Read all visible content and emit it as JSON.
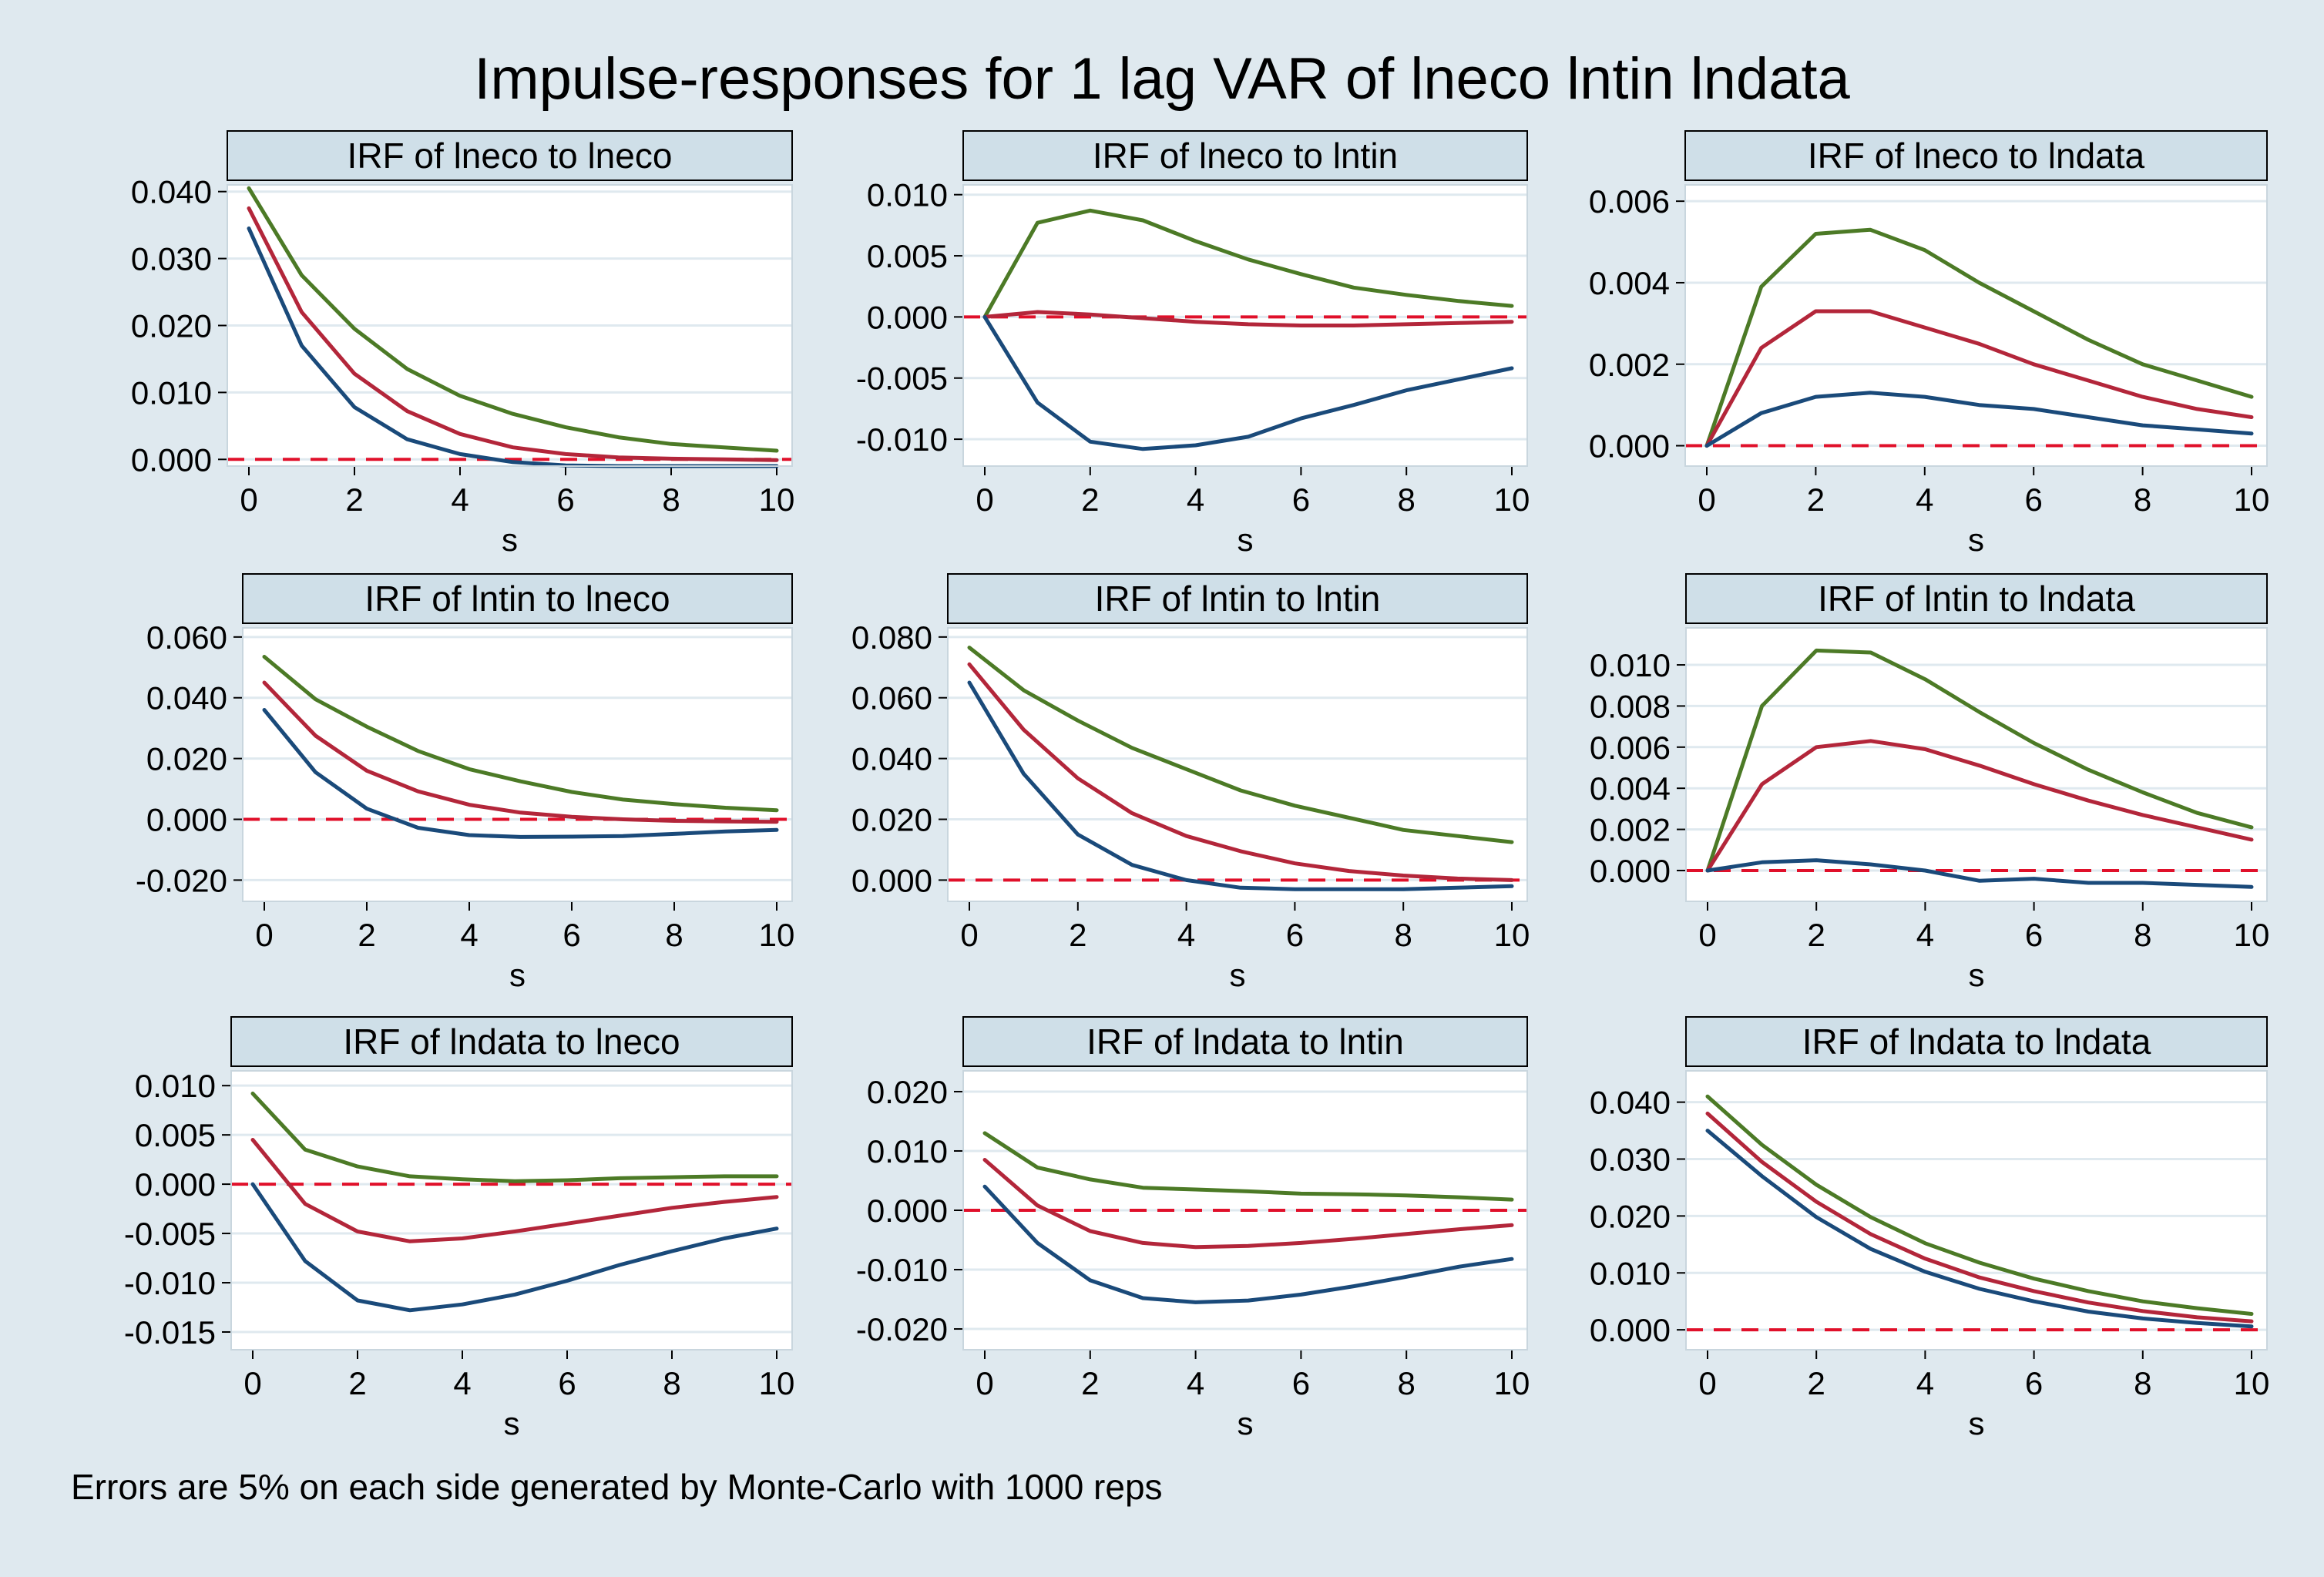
{
  "title": "Impulse-responses for 1 lag VAR of lneco lntin lndata",
  "footnote": "Errors are 5% on each side generated by Monte-Carlo with 1000 reps",
  "colors": {
    "background": "#dfe9ef",
    "plot_background": "#ffffff",
    "panel_title_bg": "#cfdfe8",
    "upper": "#4c7a26",
    "irf": "#b3263a",
    "lower": "#1a4a7a",
    "zero_line": "#e0102a",
    "grid": "#dfe9ef",
    "text": "#000000"
  },
  "chart_data": [
    {
      "type": "line",
      "title": "IRF of lneco to lneco",
      "xlabel": "s",
      "ylabel": "",
      "x": [
        0,
        1,
        2,
        3,
        4,
        5,
        6,
        7,
        8,
        9,
        10
      ],
      "xlim": [
        0,
        10
      ],
      "xticks": [
        0,
        2,
        4,
        6,
        8,
        10
      ],
      "ylim": [
        -0.001,
        0.041
      ],
      "yticks": [
        0.0,
        0.01,
        0.02,
        0.03,
        0.04
      ],
      "ytick_labels": [
        "0.000",
        "0.010",
        "0.020",
        "0.030",
        "0.040"
      ],
      "series": [
        {
          "name": "upper",
          "values": [
            0.0405,
            0.0275,
            0.0195,
            0.0135,
            0.0095,
            0.0068,
            0.0048,
            0.0033,
            0.0023,
            0.0018,
            0.0013
          ]
        },
        {
          "name": "irf",
          "values": [
            0.0375,
            0.022,
            0.0128,
            0.0072,
            0.0038,
            0.0018,
            0.0008,
            0.0003,
            0.0001,
            0.0,
            -0.0001
          ]
        },
        {
          "name": "lower",
          "values": [
            0.0345,
            0.017,
            0.0078,
            0.003,
            0.0008,
            -0.0004,
            -0.0009,
            -0.001,
            -0.001,
            -0.001,
            -0.001
          ]
        }
      ]
    },
    {
      "type": "line",
      "title": "IRF of lneco to lntin",
      "xlabel": "s",
      "ylabel": "",
      "x": [
        0,
        1,
        2,
        3,
        4,
        5,
        6,
        7,
        8,
        9,
        10
      ],
      "xlim": [
        0,
        10
      ],
      "xticks": [
        0,
        2,
        4,
        6,
        8,
        10
      ],
      "ylim": [
        -0.0122,
        0.0108
      ],
      "yticks": [
        -0.01,
        -0.005,
        0.0,
        0.005,
        0.01
      ],
      "ytick_labels": [
        "-0.010",
        "-0.005",
        "0.000",
        "0.005",
        "0.010"
      ],
      "series": [
        {
          "name": "upper",
          "values": [
            0.0,
            0.0077,
            0.0087,
            0.0079,
            0.0062,
            0.0047,
            0.0035,
            0.0024,
            0.0018,
            0.0013,
            0.0009
          ]
        },
        {
          "name": "irf",
          "values": [
            0.0,
            0.0004,
            0.0002,
            -0.0001,
            -0.0004,
            -0.0006,
            -0.0007,
            -0.0007,
            -0.0006,
            -0.0005,
            -0.0004
          ]
        },
        {
          "name": "lower",
          "values": [
            0.0,
            -0.007,
            -0.0102,
            -0.0108,
            -0.0105,
            -0.0098,
            -0.0083,
            -0.0072,
            -0.006,
            -0.0051,
            -0.0042
          ]
        }
      ]
    },
    {
      "type": "line",
      "title": "IRF of lneco to lndata",
      "xlabel": "s",
      "ylabel": "",
      "x": [
        0,
        1,
        2,
        3,
        4,
        5,
        6,
        7,
        8,
        9,
        10
      ],
      "xlim": [
        0,
        10
      ],
      "xticks": [
        0,
        2,
        4,
        6,
        8,
        10
      ],
      "ylim": [
        -0.0005,
        0.0064
      ],
      "yticks": [
        0.0,
        0.002,
        0.004,
        0.006
      ],
      "ytick_labels": [
        "0.000",
        "0.002",
        "0.004",
        "0.006"
      ],
      "series": [
        {
          "name": "upper",
          "values": [
            0.0,
            0.0039,
            0.0052,
            0.0053,
            0.0048,
            0.004,
            0.0033,
            0.0026,
            0.002,
            0.0016,
            0.0012
          ]
        },
        {
          "name": "irf",
          "values": [
            0.0,
            0.0024,
            0.0033,
            0.0033,
            0.0029,
            0.0025,
            0.002,
            0.0016,
            0.0012,
            0.0009,
            0.0007
          ]
        },
        {
          "name": "lower",
          "values": [
            0.0,
            0.0008,
            0.0012,
            0.0013,
            0.0012,
            0.001,
            0.0009,
            0.0007,
            0.0005,
            0.0004,
            0.0003
          ]
        }
      ]
    },
    {
      "type": "line",
      "title": "IRF of lntin to lneco",
      "xlabel": "s",
      "ylabel": "",
      "x": [
        0,
        1,
        2,
        3,
        4,
        5,
        6,
        7,
        8,
        9,
        10
      ],
      "xlim": [
        0,
        10
      ],
      "xticks": [
        0,
        2,
        4,
        6,
        8,
        10
      ],
      "ylim": [
        -0.027,
        0.063
      ],
      "yticks": [
        -0.02,
        0.0,
        0.02,
        0.04,
        0.06
      ],
      "ytick_labels": [
        "-0.020",
        "0.000",
        "0.020",
        "0.040",
        "0.060"
      ],
      "series": [
        {
          "name": "upper",
          "values": [
            0.0535,
            0.0395,
            0.0305,
            0.0225,
            0.0165,
            0.0125,
            0.009,
            0.0065,
            0.005,
            0.0038,
            0.003
          ]
        },
        {
          "name": "irf",
          "values": [
            0.045,
            0.0275,
            0.016,
            0.0092,
            0.0048,
            0.0022,
            0.0008,
            0.0,
            -0.0005,
            -0.0007,
            -0.0008
          ]
        },
        {
          "name": "lower",
          "values": [
            0.036,
            0.0155,
            0.0035,
            -0.0028,
            -0.0052,
            -0.0058,
            -0.0057,
            -0.0055,
            -0.0048,
            -0.004,
            -0.0035
          ]
        }
      ]
    },
    {
      "type": "line",
      "title": "IRF of lntin to lntin",
      "xlabel": "s",
      "ylabel": "",
      "x": [
        0,
        1,
        2,
        3,
        4,
        5,
        6,
        7,
        8,
        9,
        10
      ],
      "xlim": [
        0,
        10
      ],
      "xticks": [
        0,
        2,
        4,
        6,
        8,
        10
      ],
      "ylim": [
        -0.007,
        0.083
      ],
      "yticks": [
        0.0,
        0.02,
        0.04,
        0.06,
        0.08
      ],
      "ytick_labels": [
        "0.000",
        "0.020",
        "0.040",
        "0.060",
        "0.080"
      ],
      "series": [
        {
          "name": "upper",
          "values": [
            0.0765,
            0.0625,
            0.0525,
            0.0435,
            0.0365,
            0.0295,
            0.0245,
            0.0205,
            0.0165,
            0.0145,
            0.0125
          ]
        },
        {
          "name": "irf",
          "values": [
            0.071,
            0.0495,
            0.0335,
            0.022,
            0.0145,
            0.0095,
            0.0055,
            0.003,
            0.0015,
            0.0005,
            0.0
          ]
        },
        {
          "name": "lower",
          "values": [
            0.065,
            0.035,
            0.015,
            0.005,
            0.0,
            -0.0025,
            -0.003,
            -0.003,
            -0.003,
            -0.0025,
            -0.002
          ]
        }
      ]
    },
    {
      "type": "line",
      "title": "IRF of lntin to lndata",
      "xlabel": "s",
      "ylabel": "",
      "x": [
        0,
        1,
        2,
        3,
        4,
        5,
        6,
        7,
        8,
        9,
        10
      ],
      "xlim": [
        0,
        10
      ],
      "xticks": [
        0,
        2,
        4,
        6,
        8,
        10
      ],
      "ylim": [
        -0.0015,
        0.0118
      ],
      "yticks": [
        0.0,
        0.002,
        0.004,
        0.006,
        0.008,
        0.01
      ],
      "ytick_labels": [
        "0.000",
        "0.002",
        "0.004",
        "0.006",
        "0.008",
        "0.010"
      ],
      "series": [
        {
          "name": "upper",
          "values": [
            0.0,
            0.008,
            0.0107,
            0.0106,
            0.0093,
            0.0077,
            0.0062,
            0.0049,
            0.0038,
            0.0028,
            0.0021
          ]
        },
        {
          "name": "irf",
          "values": [
            0.0,
            0.0042,
            0.006,
            0.0063,
            0.0059,
            0.0051,
            0.0042,
            0.0034,
            0.0027,
            0.0021,
            0.0015
          ]
        },
        {
          "name": "lower",
          "values": [
            0.0,
            0.0004,
            0.0005,
            0.0003,
            0.0,
            -0.0005,
            -0.0004,
            -0.0006,
            -0.0006,
            -0.0007,
            -0.0008
          ]
        }
      ]
    },
    {
      "type": "line",
      "title": "IRF of lndata to lneco",
      "xlabel": "s",
      "ylabel": "",
      "x": [
        0,
        1,
        2,
        3,
        4,
        5,
        6,
        7,
        8,
        9,
        10
      ],
      "xlim": [
        0,
        10
      ],
      "xticks": [
        0,
        2,
        4,
        6,
        8,
        10
      ],
      "ylim": [
        -0.0168,
        0.0115
      ],
      "yticks": [
        -0.015,
        -0.01,
        -0.005,
        0.0,
        0.005,
        0.01
      ],
      "ytick_labels": [
        "-0.015",
        "-0.010",
        "-0.005",
        "0.000",
        "0.005",
        "0.010"
      ],
      "series": [
        {
          "name": "upper",
          "values": [
            0.0092,
            0.0035,
            0.0018,
            0.0008,
            0.0005,
            0.0003,
            0.0004,
            0.0006,
            0.0007,
            0.0008,
            0.0008
          ]
        },
        {
          "name": "irf",
          "values": [
            0.0045,
            -0.002,
            -0.0048,
            -0.0058,
            -0.0055,
            -0.0048,
            -0.004,
            -0.0032,
            -0.0024,
            -0.0018,
            -0.0013
          ]
        },
        {
          "name": "lower",
          "values": [
            0.0,
            -0.0078,
            -0.0118,
            -0.0128,
            -0.0122,
            -0.0112,
            -0.0098,
            -0.0082,
            -0.0068,
            -0.0055,
            -0.0045
          ]
        }
      ]
    },
    {
      "type": "line",
      "title": "IRF of lndata to lntin",
      "xlabel": "s",
      "ylabel": "",
      "x": [
        0,
        1,
        2,
        3,
        4,
        5,
        6,
        7,
        8,
        9,
        10
      ],
      "xlim": [
        0,
        10
      ],
      "xticks": [
        0,
        2,
        4,
        6,
        8,
        10
      ],
      "ylim": [
        -0.0235,
        0.0235
      ],
      "yticks": [
        -0.02,
        -0.01,
        0.0,
        0.01,
        0.02
      ],
      "ytick_labels": [
        "-0.020",
        "-0.010",
        "0.000",
        "0.010",
        "0.020"
      ],
      "series": [
        {
          "name": "upper",
          "values": [
            0.013,
            0.0072,
            0.0052,
            0.0038,
            0.0035,
            0.0032,
            0.0028,
            0.0027,
            0.0025,
            0.0022,
            0.0018
          ]
        },
        {
          "name": "irf",
          "values": [
            0.0085,
            0.0008,
            -0.0035,
            -0.0055,
            -0.0062,
            -0.006,
            -0.0055,
            -0.0048,
            -0.004,
            -0.0032,
            -0.0025
          ]
        },
        {
          "name": "lower",
          "values": [
            0.004,
            -0.0055,
            -0.0118,
            -0.0148,
            -0.0155,
            -0.0152,
            -0.0142,
            -0.0128,
            -0.0112,
            -0.0095,
            -0.0082
          ]
        }
      ]
    },
    {
      "type": "line",
      "title": "IRF of lndata to lndata",
      "xlabel": "s",
      "ylabel": "",
      "x": [
        0,
        1,
        2,
        3,
        4,
        5,
        6,
        7,
        8,
        9,
        10
      ],
      "xlim": [
        0,
        10
      ],
      "xticks": [
        0,
        2,
        4,
        6,
        8,
        10
      ],
      "ylim": [
        -0.0035,
        0.0455
      ],
      "yticks": [
        0.0,
        0.01,
        0.02,
        0.03,
        0.04
      ],
      "ytick_labels": [
        "0.000",
        "0.010",
        "0.020",
        "0.030",
        "0.040"
      ],
      "series": [
        {
          "name": "upper",
          "values": [
            0.041,
            0.0325,
            0.0255,
            0.0198,
            0.0152,
            0.0118,
            0.009,
            0.0068,
            0.005,
            0.0038,
            0.0028
          ]
        },
        {
          "name": "irf",
          "values": [
            0.038,
            0.0295,
            0.0225,
            0.0168,
            0.0125,
            0.0092,
            0.0068,
            0.0048,
            0.0033,
            0.0022,
            0.0015
          ]
        },
        {
          "name": "lower",
          "values": [
            0.035,
            0.027,
            0.0198,
            0.0142,
            0.0102,
            0.0072,
            0.005,
            0.0032,
            0.002,
            0.0012,
            0.0006
          ]
        }
      ]
    }
  ]
}
